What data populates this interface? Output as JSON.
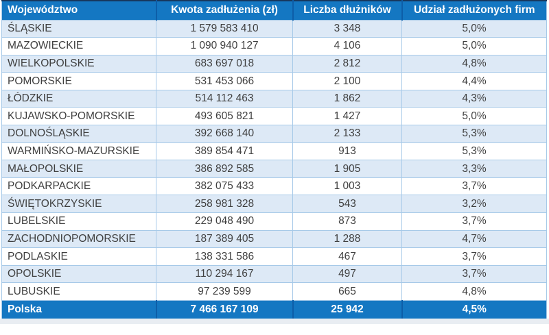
{
  "header": {
    "columns": [
      {
        "label": "Województwo",
        "align": "left"
      },
      {
        "label": "Kwota zadłużenia (zł)",
        "align": "center"
      },
      {
        "label": "Liczba dłużników",
        "align": "center"
      },
      {
        "label": "Udział zadłużonych firm",
        "align": "center"
      }
    ]
  },
  "rows": [
    [
      "ŚLĄSKIE",
      "1 579 583 410",
      "3 348",
      "5,0%"
    ],
    [
      "MAZOWIECKIE",
      "1 090 940 127",
      "4 106",
      "5,0%"
    ],
    [
      "WIELKOPOLSKIE",
      "683 697 018",
      "2 812",
      "4,8%"
    ],
    [
      "POMORSKIE",
      "531 453 066",
      "2 100",
      "4,4%"
    ],
    [
      "ŁÓDZKIE",
      "514 112 463",
      "1 862",
      "4,3%"
    ],
    [
      "KUJAWSKO-POMORSKIE",
      "493 605 821",
      "1 427",
      "5,0%"
    ],
    [
      "DOLNOŚLĄSKIE",
      "392 668 140",
      "2 133",
      "5,3%"
    ],
    [
      "WARMIŃSKO-MAZURSKIE",
      "389 854 471",
      "913",
      "5,3%"
    ],
    [
      "MAŁOPOLSKIE",
      "386 892 585",
      "1 905",
      "3,3%"
    ],
    [
      "PODKARPACKIE",
      "382 075 433",
      "1 003",
      "3,7%"
    ],
    [
      "ŚWIĘTOKRZYSKIE",
      "258 981 328",
      "543",
      "3,2%"
    ],
    [
      "LUBELSKIE",
      "229 048 490",
      "873",
      "3,7%"
    ],
    [
      "ZACHODNIOPOMORSKIE",
      "187 389 405",
      "1 288",
      "4,7%"
    ],
    [
      "PODLASKIE",
      "138 331 586",
      "467",
      "3,7%"
    ],
    [
      "OPOLSKIE",
      "110 294 167",
      "497",
      "3,7%"
    ],
    [
      "LUBUSKIE",
      "97 239 599",
      "665",
      "4,8%"
    ]
  ],
  "footer": [
    "Polska",
    "7 466 167 109",
    "25 942",
    "4,5%"
  ],
  "colors": {
    "header_bg": "#1477c2",
    "header_text": "#ffffff",
    "row_alt": "#dde9f6",
    "row_white": "#ffffff",
    "grid": "#a6c9e8",
    "sep_dark": "#0d5ea8",
    "top_border": "#17375d",
    "body_text": "#3f3f3f",
    "strip": "#e9edf2"
  },
  "chart_data": {
    "type": "table",
    "title": "",
    "columns": [
      "Województwo",
      "Kwota zadłużenia (zł)",
      "Liczba dłużników",
      "Udział zadłużonych firm"
    ],
    "rows": [
      {
        "wojewodztwo": "ŚLĄSKIE",
        "kwota_zadluzenia_zl": 1579583410,
        "liczba_dluznikow": 3348,
        "udzial_zadluzonych_firm_pct": 5.0
      },
      {
        "wojewodztwo": "MAZOWIECKIE",
        "kwota_zadluzenia_zl": 1090940127,
        "liczba_dluznikow": 4106,
        "udzial_zadluzonych_firm_pct": 5.0
      },
      {
        "wojewodztwo": "WIELKOPOLSKIE",
        "kwota_zadluzenia_zl": 683697018,
        "liczba_dluznikow": 2812,
        "udzial_zadluzonych_firm_pct": 4.8
      },
      {
        "wojewodztwo": "POMORSKIE",
        "kwota_zadluzenia_zl": 531453066,
        "liczba_dluznikow": 2100,
        "udzial_zadluzonych_firm_pct": 4.4
      },
      {
        "wojewodztwo": "ŁÓDZKIE",
        "kwota_zadluzenia_zl": 514112463,
        "liczba_dluznikow": 1862,
        "udzial_zadluzonych_firm_pct": 4.3
      },
      {
        "wojewodztwo": "KUJAWSKO-POMORSKIE",
        "kwota_zadluzenia_zl": 493605821,
        "liczba_dluznikow": 1427,
        "udzial_zadluzonych_firm_pct": 5.0
      },
      {
        "wojewodztwo": "DOLNOŚLĄSKIE",
        "kwota_zadluzenia_zl": 392668140,
        "liczba_dluznikow": 2133,
        "udzial_zadluzonych_firm_pct": 5.3
      },
      {
        "wojewodztwo": "WARMIŃSKO-MAZURSKIE",
        "kwota_zadluzenia_zl": 389854471,
        "liczba_dluznikow": 913,
        "udzial_zadluzonych_firm_pct": 5.3
      },
      {
        "wojewodztwo": "MAŁOPOLSKIE",
        "kwota_zadluzenia_zl": 386892585,
        "liczba_dluznikow": 1905,
        "udzial_zadluzonych_firm_pct": 3.3
      },
      {
        "wojewodztwo": "PODKARPACKIE",
        "kwota_zadluzenia_zl": 382075433,
        "liczba_dluznikow": 1003,
        "udzial_zadluzonych_firm_pct": 3.7
      },
      {
        "wojewodztwo": "ŚWIĘTOKRZYSKIE",
        "kwota_zadluzenia_zl": 258981328,
        "liczba_dluznikow": 543,
        "udzial_zadluzonych_firm_pct": 3.2
      },
      {
        "wojewodztwo": "LUBELSKIE",
        "kwota_zadluzenia_zl": 229048490,
        "liczba_dluznikow": 873,
        "udzial_zadluzonych_firm_pct": 3.7
      },
      {
        "wojewodztwo": "ZACHODNIOPOMORSKIE",
        "kwota_zadluzenia_zl": 187389405,
        "liczba_dluznikow": 1288,
        "udzial_zadluzonych_firm_pct": 4.7
      },
      {
        "wojewodztwo": "PODLASKIE",
        "kwota_zadluzenia_zl": 138331586,
        "liczba_dluznikow": 467,
        "udzial_zadluzonych_firm_pct": 3.7
      },
      {
        "wojewodztwo": "OPOLSKIE",
        "kwota_zadluzenia_zl": 110294167,
        "liczba_dluznikow": 497,
        "udzial_zadluzonych_firm_pct": 3.7
      },
      {
        "wojewodztwo": "LUBUSKIE",
        "kwota_zadluzenia_zl": 97239599,
        "liczba_dluznikow": 665,
        "udzial_zadluzonych_firm_pct": 4.8
      }
    ],
    "total": {
      "wojewodztwo": "Polska",
      "kwota_zadluzenia_zl": 7466167109,
      "liczba_dluznikow": 25942,
      "udzial_zadluzonych_firm_pct": 4.5
    }
  }
}
